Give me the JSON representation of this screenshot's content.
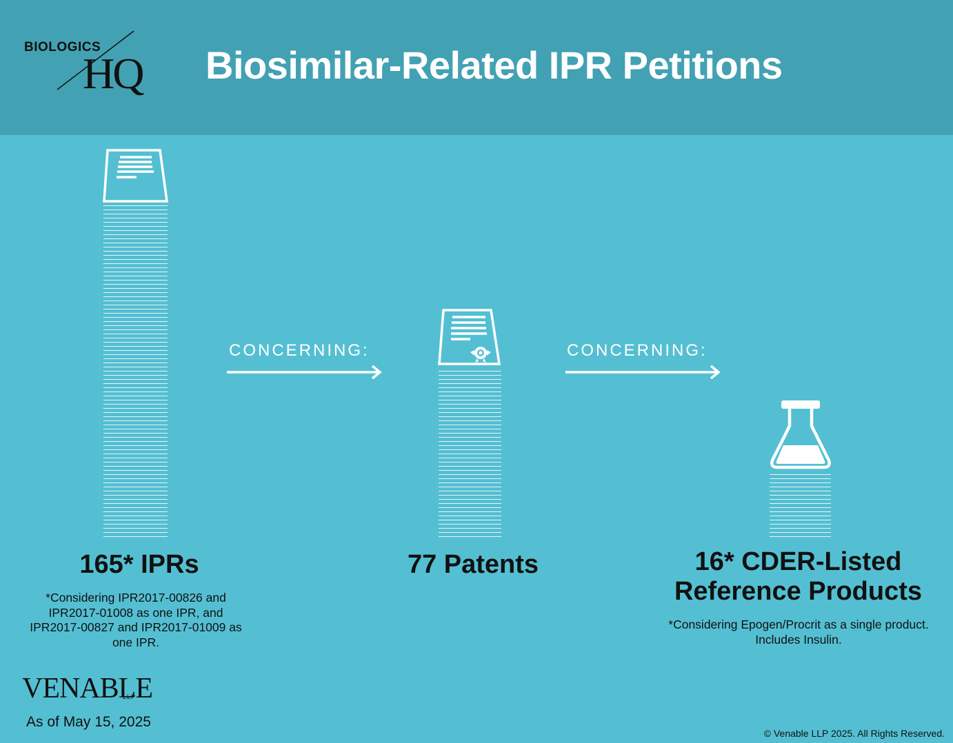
{
  "header": {
    "logo_top": "BIOLOGICS",
    "logo_bottom": "HQ",
    "title": "Biosimilar-Related IPR Petitions"
  },
  "connectors": {
    "concerning_1": "CONCERNING:",
    "concerning_2": "CONCERNING:"
  },
  "stats": [
    {
      "label": "165* IPRs",
      "note": "*Considering IPR2017-00826 and IPR2017-01008 as one IPR, and IPR2017-00827 and IPR2017-01009 as one IPR.",
      "icon": "document-icon"
    },
    {
      "label": "77 Patents",
      "note": "",
      "icon": "certificate-icon"
    },
    {
      "label": "16* CDER-Listed Reference Products",
      "note": "*Considering Epogen/Procrit as a single product. Includes Insulin.",
      "icon": "flask-icon"
    }
  ],
  "footer": {
    "brand": "VENABLE",
    "brand_suffix": "LLP",
    "as_of": "As of May 15, 2025",
    "copyright": "© Venable LLP 2025. All Rights Reserved."
  },
  "colors": {
    "background": "#54bfd2",
    "header": "#43a1b4",
    "text_light": "#ffffff",
    "text_dark": "#111111"
  }
}
